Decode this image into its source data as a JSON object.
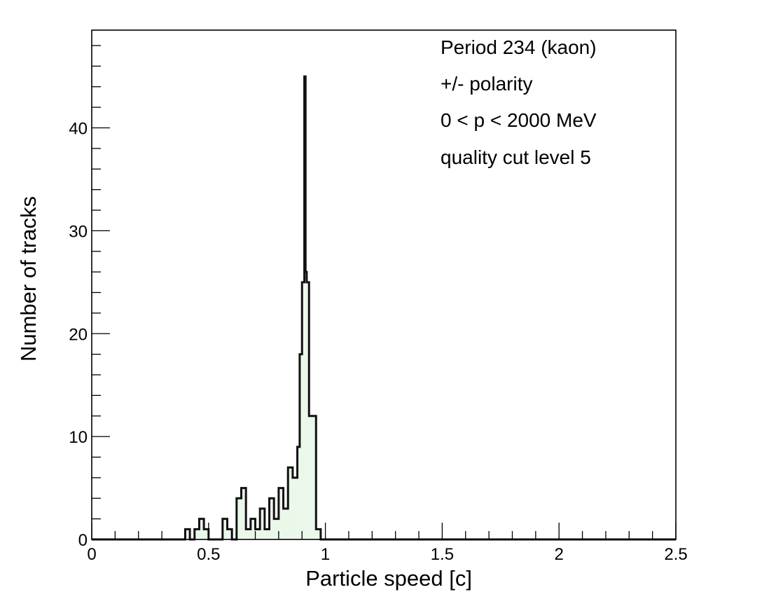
{
  "chart_data": {
    "type": "bar",
    "subtype": "histogram",
    "xlabel": "Particle speed [c]",
    "ylabel": "Number of tracks",
    "xlim": [
      0,
      2.5
    ],
    "ylim": [
      0,
      49.5
    ],
    "bin_width": 0.02,
    "x_ticks": [
      0,
      0.5,
      1,
      1.5,
      2,
      2.5
    ],
    "x_tick_labels": [
      "0",
      "0.5",
      "1",
      "1.5",
      "2",
      "2.5"
    ],
    "y_ticks": [
      0,
      10,
      20,
      30,
      40
    ],
    "y_tick_labels": [
      "0",
      "10",
      "20",
      "30",
      "40"
    ],
    "grid": false,
    "legend": "none",
    "annotations": [
      "Period 234 (kaon)",
      "+/- polarity",
      "0 < p < 2000 MeV",
      "quality cut level 5"
    ],
    "fill_color": "#eaf8ea",
    "line_color": "#111111",
    "bins": [
      {
        "x": 0.4,
        "y": 1
      },
      {
        "x": 0.44,
        "y": 1
      },
      {
        "x": 0.46,
        "y": 2
      },
      {
        "x": 0.48,
        "y": 1
      },
      {
        "x": 0.56,
        "y": 2
      },
      {
        "x": 0.58,
        "y": 1
      },
      {
        "x": 0.62,
        "y": 4
      },
      {
        "x": 0.64,
        "y": 5
      },
      {
        "x": 0.66,
        "y": 1
      },
      {
        "x": 0.68,
        "y": 2
      },
      {
        "x": 0.7,
        "y": 1
      },
      {
        "x": 0.72,
        "y": 3
      },
      {
        "x": 0.74,
        "y": 1
      },
      {
        "x": 0.76,
        "y": 4
      },
      {
        "x": 0.78,
        "y": 2
      },
      {
        "x": 0.8,
        "y": 5
      },
      {
        "x": 0.82,
        "y": 3
      },
      {
        "x": 0.84,
        "y": 7
      },
      {
        "x": 0.86,
        "y": 6
      },
      {
        "x": 0.88,
        "y": 9
      },
      {
        "x": 0.9,
        "y": 25
      },
      {
        "x": 0.92,
        "y": 45
      },
      {
        "x": 0.94,
        "y": 12
      },
      {
        "x": 0.96,
        "y": 1
      }
    ],
    "fine_bins": [
      {
        "x": 0.88,
        "w": 0.01,
        "y": 9
      },
      {
        "x": 0.89,
        "w": 0.01,
        "y": 18
      },
      {
        "x": 0.9,
        "w": 0.01,
        "y": 25
      },
      {
        "x": 0.91,
        "w": 0.005,
        "y": 45
      },
      {
        "x": 0.915,
        "w": 0.005,
        "y": 26
      },
      {
        "x": 0.92,
        "w": 0.01,
        "y": 25
      },
      {
        "x": 0.93,
        "w": 0.01,
        "y": 12
      }
    ]
  }
}
